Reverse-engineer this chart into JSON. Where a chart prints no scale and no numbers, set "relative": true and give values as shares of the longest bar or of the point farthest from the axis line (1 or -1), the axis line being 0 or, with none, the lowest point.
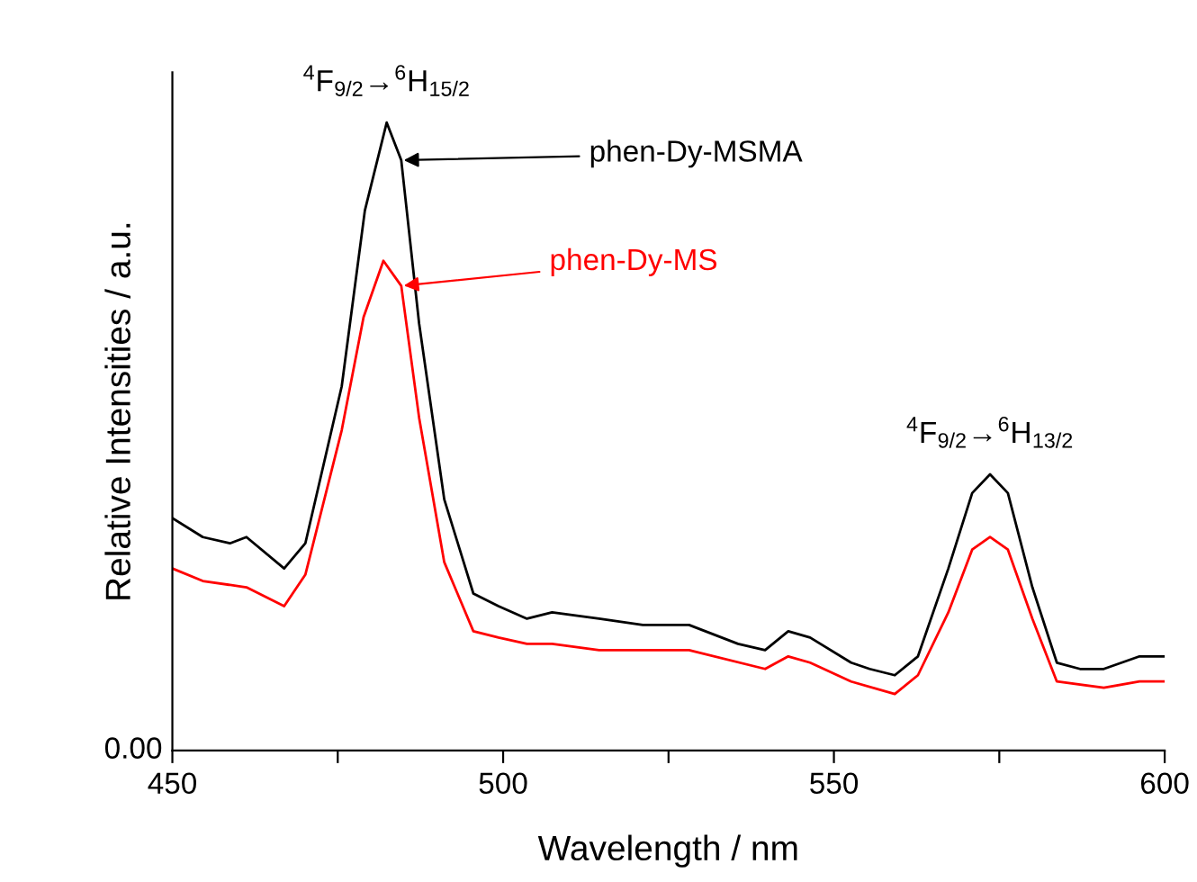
{
  "chart_data": {
    "type": "line",
    "relative": true,
    "xlabel": "Wavelength / nm",
    "ylabel": "Relative Intensities / a.u.",
    "xlim": [
      450,
      600
    ],
    "xticks": [
      450,
      {
        "value": 475,
        "label": null
      },
      500,
      {
        "value": 525,
        "label": null
      },
      550,
      {
        "value": 575,
        "label": null
      },
      600
    ],
    "grid": false,
    "marker": "none",
    "line_style": "solid",
    "series": [
      {
        "name": "phen-Dy-MSMA",
        "color": "#000000",
        "x": [
          450,
          454.6,
          458.7,
          461.2,
          466.9,
          470.1,
          475.6,
          479.1,
          482.4,
          484.6,
          487.3,
          491.1,
          495.5,
          499.3,
          503.6,
          507.4,
          514.5,
          521.1,
          525.4,
          528.1,
          535.5,
          539.6,
          543.1,
          546.4,
          552.6,
          555.4,
          559.2,
          562.7,
          567.3,
          570.9,
          573.6,
          576.3,
          580.0,
          583.7,
          587.2,
          590.8,
          596.2,
          600
        ],
        "values": [
          0.37,
          0.34,
          0.33,
          0.34,
          0.29,
          0.33,
          0.58,
          0.86,
          1.0,
          0.94,
          0.68,
          0.4,
          0.25,
          0.23,
          0.21,
          0.22,
          0.21,
          0.2,
          0.2,
          0.2,
          0.17,
          0.16,
          0.19,
          0.18,
          0.14,
          0.13,
          0.12,
          0.15,
          0.29,
          0.41,
          0.44,
          0.41,
          0.26,
          0.14,
          0.13,
          0.13,
          0.15,
          0.15
        ]
      },
      {
        "name": "phen-Dy-MS",
        "color": "#ff0000",
        "x": [
          450,
          454.6,
          461.2,
          466.9,
          470.1,
          475.6,
          478.9,
          481.9,
          484.6,
          487.3,
          491.1,
          495.5,
          499.3,
          503.6,
          507.4,
          514.5,
          521.1,
          525.4,
          528.1,
          539.6,
          543.1,
          546.4,
          552.6,
          559.2,
          562.7,
          567.3,
          570.9,
          573.6,
          576.3,
          580.0,
          583.7,
          590.8,
          596.2,
          600
        ],
        "values": [
          0.29,
          0.27,
          0.26,
          0.23,
          0.28,
          0.51,
          0.69,
          0.78,
          0.74,
          0.53,
          0.3,
          0.19,
          0.18,
          0.17,
          0.17,
          0.16,
          0.16,
          0.16,
          0.16,
          0.13,
          0.15,
          0.14,
          0.11,
          0.09,
          0.12,
          0.22,
          0.32,
          0.34,
          0.32,
          0.21,
          0.11,
          0.1,
          0.11,
          0.11
        ]
      }
    ],
    "annotations": [
      "0.00",
      {
        "text": "$^{4}$F$_{9/2}$→$^{6}$H$_{15/2}$",
        "x": 482.4,
        "y": 1.0
      },
      {
        "text": "$^{4}$F$_{9/2}$→$^{6}$H$_{13/2}$",
        "x": 573.6,
        "y": 0.44
      }
    ]
  }
}
